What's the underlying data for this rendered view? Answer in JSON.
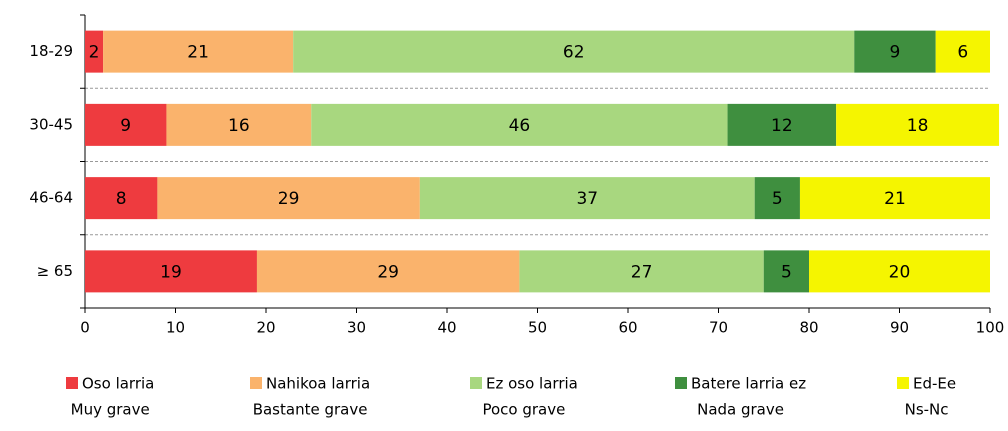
{
  "chart_data": {
    "type": "stacked-barh",
    "categories": [
      "18-29",
      "30-45",
      "46-64",
      "≥ 65"
    ],
    "series": [
      {
        "name": "Oso larria",
        "name2": "Muy grave",
        "color": "#ee3b3f",
        "values": [
          2,
          9,
          8,
          19
        ]
      },
      {
        "name": "Nahikoa larria",
        "name2": "Bastante grave",
        "color": "#fab36c",
        "values": [
          21,
          16,
          29,
          29
        ]
      },
      {
        "name": "Ez oso larria",
        "name2": "Poco grave",
        "color": "#a8d77f",
        "values": [
          62,
          46,
          37,
          27
        ]
      },
      {
        "name": "Batere larria ez",
        "name2": "Nada grave",
        "color": "#3f8f3f",
        "values": [
          9,
          12,
          5,
          5
        ]
      },
      {
        "name": "Ed-Ee",
        "name2": "Ns-Nc",
        "color": "#f5f500",
        "values": [
          6,
          18,
          21,
          20
        ]
      }
    ],
    "xlim": [
      0,
      100
    ],
    "xticks": [
      0,
      10,
      20,
      30,
      40,
      50,
      60,
      70,
      80,
      90,
      100
    ],
    "legend": "bottom"
  }
}
